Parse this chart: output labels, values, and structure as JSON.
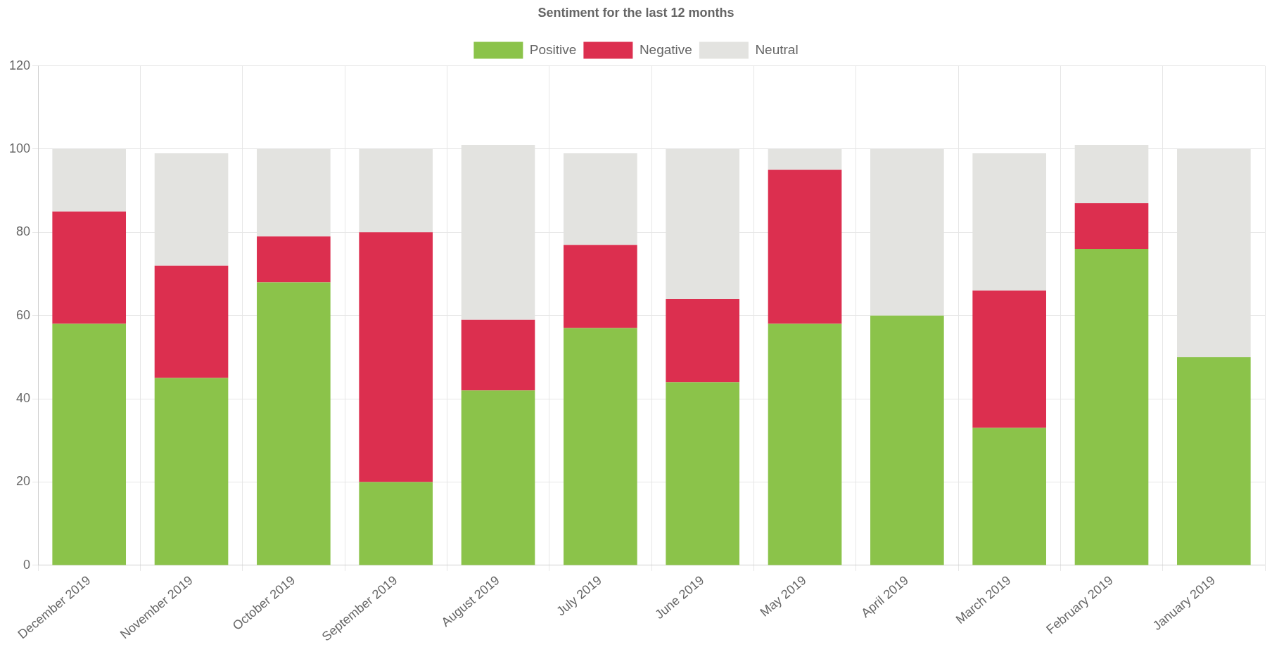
{
  "chart_data": {
    "type": "bar",
    "title": "Sentiment for the last 12 months",
    "categories": [
      "December 2019",
      "November 2019",
      "October 2019",
      "September 2019",
      "August 2019",
      "July 2019",
      "June 2019",
      "May 2019",
      "April 2019",
      "March 2019",
      "February 2019",
      "January 2019"
    ],
    "series": [
      {
        "name": "Positive",
        "color": "#8bc34a",
        "values": [
          58,
          45,
          68,
          20,
          42,
          57,
          44,
          58,
          60,
          33,
          76,
          50
        ]
      },
      {
        "name": "Negative",
        "color": "#dc2f4f",
        "values": [
          27,
          27,
          11,
          60,
          17,
          20,
          20,
          37,
          0,
          33,
          11,
          0
        ]
      },
      {
        "name": "Neutral",
        "color": "#e3e3e0",
        "values": [
          15,
          27,
          21,
          20,
          42,
          22,
          36,
          5,
          40,
          33,
          14,
          50
        ]
      }
    ],
    "stacked": true,
    "ylim": [
      0,
      120
    ],
    "yticks": [
      0,
      20,
      40,
      60,
      80,
      100,
      120
    ],
    "grid": true,
    "legend": "top"
  }
}
